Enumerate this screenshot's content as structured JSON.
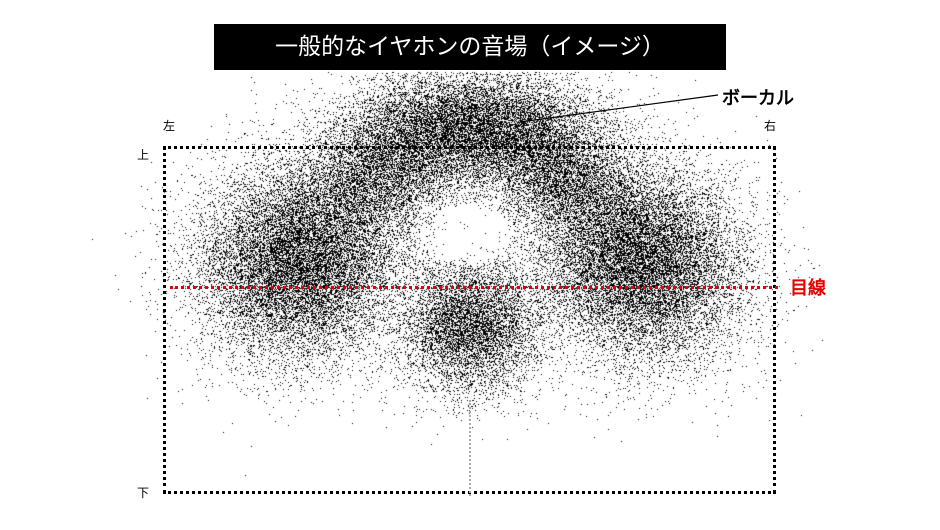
{
  "title": "一般的なイヤホンの音場（イメージ）",
  "labels": {
    "left": "左",
    "right": "右",
    "top": "上",
    "bottom": "下"
  },
  "vocal_label": "ボーカル",
  "eye_line_label": "目線",
  "colors": {
    "eye_line": "#e60000",
    "dots": "#000000",
    "title_bg": "#000000"
  }
}
